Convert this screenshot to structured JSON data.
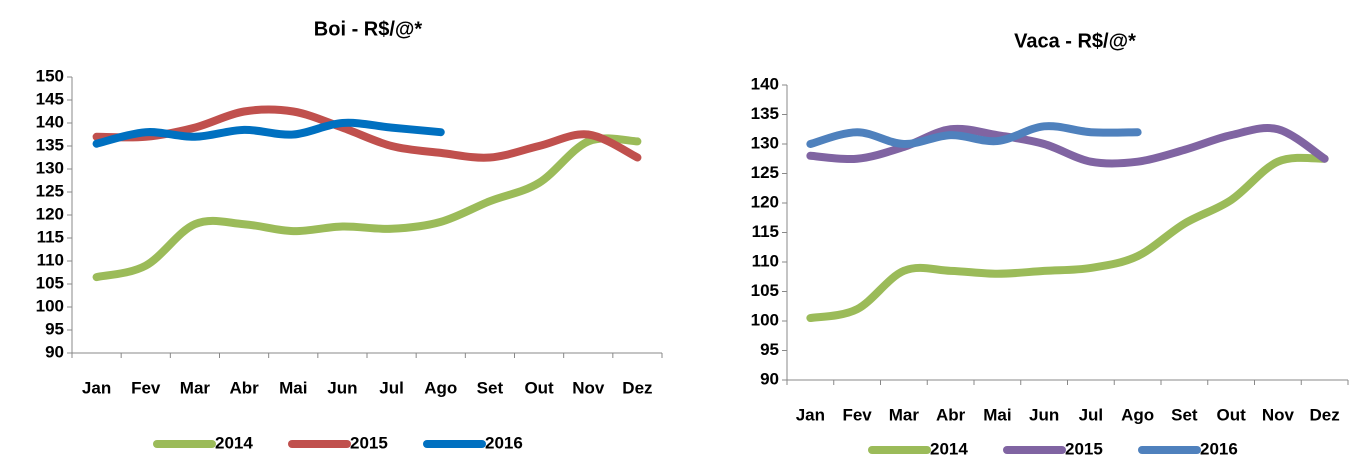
{
  "chart_data": [
    {
      "type": "line",
      "title": "Boi - R$/@*",
      "categories": [
        "Jan",
        "Fev",
        "Mar",
        "Abr",
        "Mai",
        "Jun",
        "Jul",
        "Ago",
        "Set",
        "Out",
        "Nov",
        "Dez"
      ],
      "series": [
        {
          "name": "2014",
          "color": "#9bbb59",
          "values": [
            106.5,
            109,
            118,
            118,
            116.5,
            117.5,
            117,
            118.5,
            123,
            127,
            136,
            136
          ]
        },
        {
          "name": "2015",
          "color": "#c0504d",
          "values": [
            137,
            137,
            139,
            142.5,
            142.5,
            139,
            135,
            133.5,
            132.5,
            135,
            137.5,
            132.5
          ]
        },
        {
          "name": "2016",
          "color": "#0070c0",
          "values": [
            135.5,
            138,
            137,
            138.5,
            137.5,
            140,
            139,
            138,
            null,
            null,
            null,
            null
          ]
        }
      ],
      "ylim": [
        90,
        150
      ],
      "yticks": [
        90,
        95,
        100,
        105,
        110,
        115,
        120,
        125,
        130,
        135,
        140,
        145,
        150
      ],
      "grid": false,
      "legend": "bottom"
    },
    {
      "type": "line",
      "title": "Vaca - R$/@*",
      "categories": [
        "Jan",
        "Fev",
        "Mar",
        "Abr",
        "Mai",
        "Jun",
        "Jul",
        "Ago",
        "Set",
        "Out",
        "Nov",
        "Dez"
      ],
      "series": [
        {
          "name": "2014",
          "color": "#9bbb59",
          "values": [
            100.5,
            102,
            108.5,
            108.5,
            108,
            108.5,
            109,
            111,
            116.5,
            120.5,
            127,
            127.5
          ]
        },
        {
          "name": "2015",
          "color": "#8064a2",
          "values": [
            128,
            127.5,
            129.5,
            132.5,
            131.5,
            130,
            127,
            127,
            129,
            131.5,
            132.5,
            127.5
          ]
        },
        {
          "name": "2016",
          "color": "#4f81bd",
          "values": [
            130,
            132,
            130,
            131.5,
            130.5,
            133,
            132,
            132,
            null,
            null,
            null,
            null
          ]
        }
      ],
      "ylim": [
        90,
        140
      ],
      "yticks": [
        90,
        95,
        100,
        105,
        110,
        115,
        120,
        125,
        130,
        135,
        140
      ],
      "grid": false,
      "legend": "bottom"
    }
  ]
}
